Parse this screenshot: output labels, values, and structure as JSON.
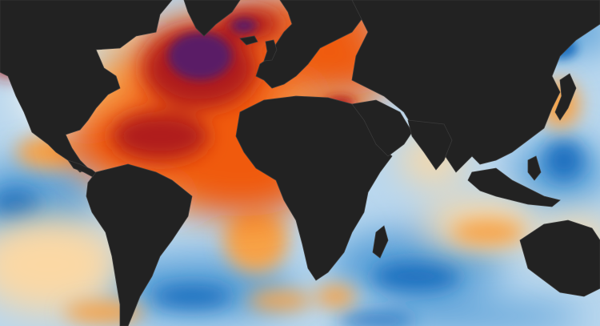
{
  "map": {
    "kind": "sea-surface-temperature-anomaly",
    "projection": "equirectangular-world",
    "text_labels": [],
    "colors": {
      "land": "#222222",
      "land_border": "#3a3a3a",
      "anomaly_strong_warm": "#5a1a66",
      "anomaly_hot": "#b01e1e",
      "anomaly_warm": "#f05a10",
      "anomaly_mild_warm": "#f7a347",
      "anomaly_slight_warm": "#fbd8a4",
      "anomaly_neutral": "#f4f4f0",
      "anomaly_slight_cool": "#b9d7ee",
      "anomaly_cool": "#5aa0d8",
      "anomaly_strong_cool": "#1f6fbf"
    }
  }
}
